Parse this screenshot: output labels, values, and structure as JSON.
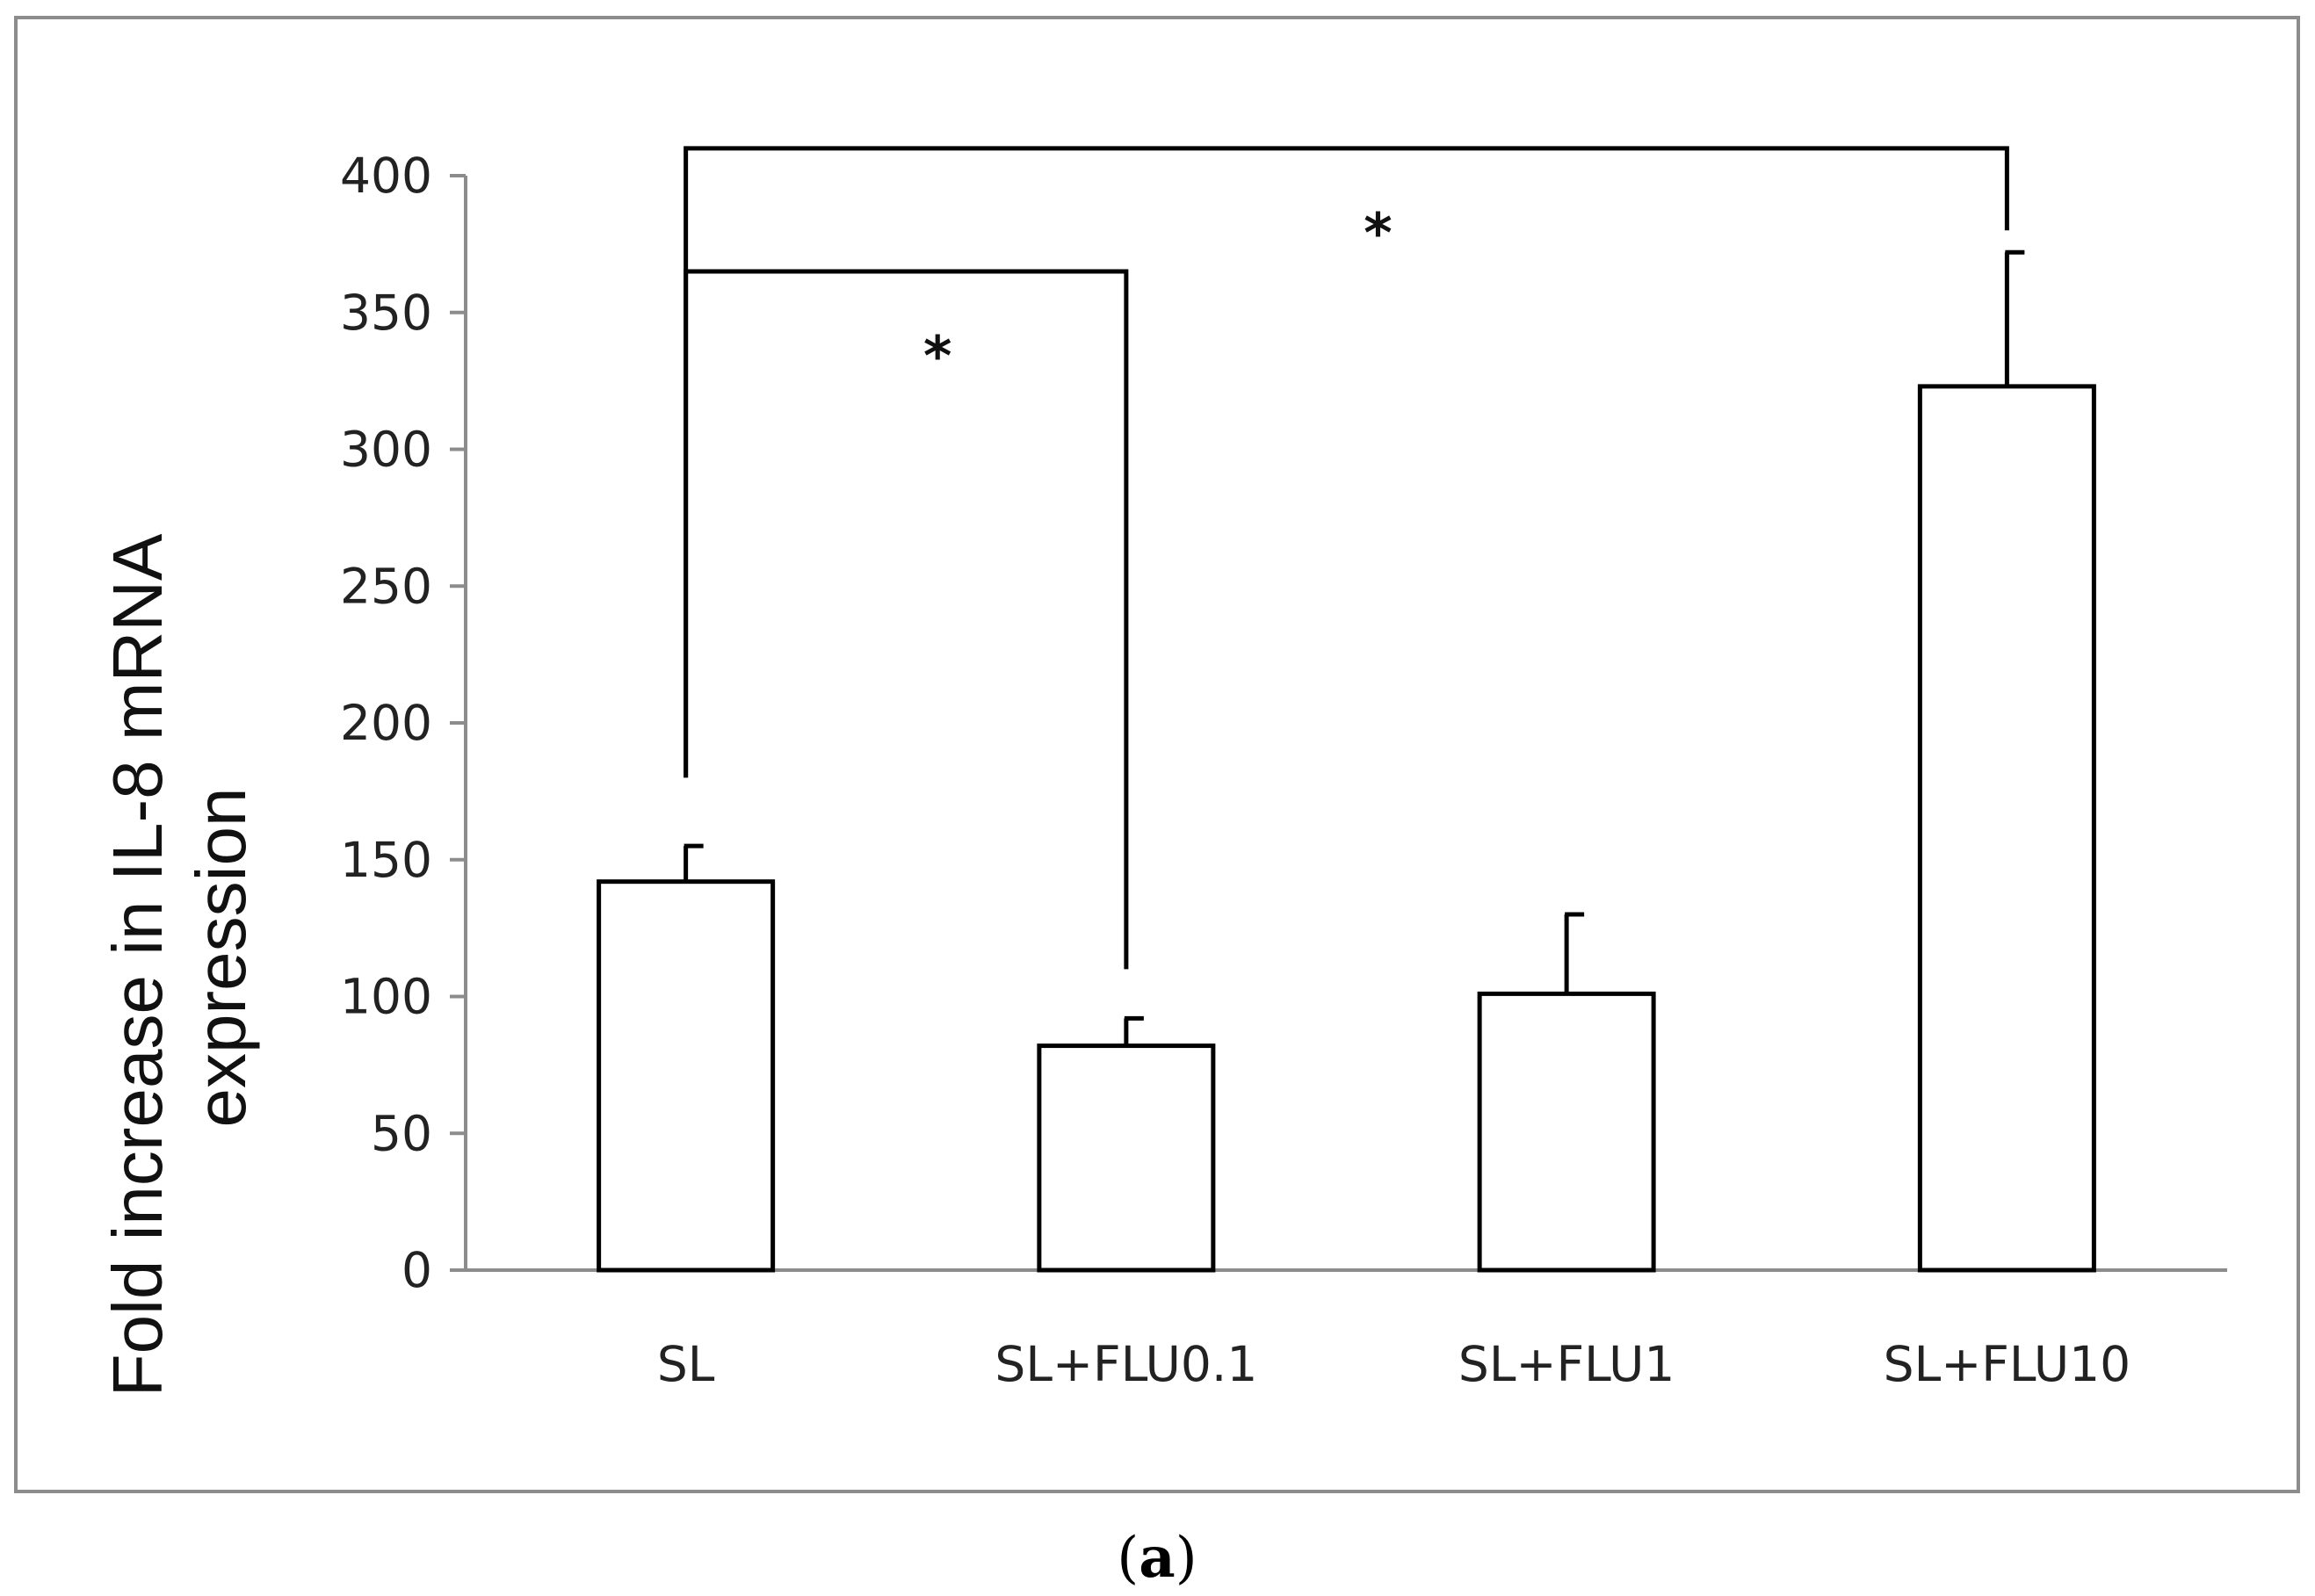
{
  "chart_data": {
    "type": "bar",
    "categories": [
      "SL",
      "SL+FLU0.1",
      "SL+FLU1",
      "SL+FLU10"
    ],
    "values": [
      142,
      82,
      101,
      323
    ],
    "error_upper": [
      155,
      92,
      130,
      372
    ],
    "ylabel_lines": [
      "Fold increase in IL-8 mRNA",
      "expression"
    ],
    "xlabel": "",
    "ylim": [
      0,
      400
    ],
    "yticks": [
      0,
      50,
      100,
      150,
      200,
      250,
      300,
      350,
      400
    ],
    "bar_fill": "#ffffff",
    "bar_stroke": "#000000",
    "axis_color": "#8c8c8c",
    "frame_color": "#8c8c8c",
    "grid": false,
    "legend": "none",
    "significance": [
      {
        "from": "SL",
        "to": "SL+FLU0.1",
        "label": "*",
        "bracket_y": 365,
        "from_drop_to": 180,
        "to_drop_to": 110
      },
      {
        "from": "SL",
        "to": "SL+FLU10",
        "label": "*",
        "bracket_y": 410,
        "from_drop_to": 180,
        "to_drop_to": 380
      }
    ]
  },
  "caption": {
    "open": "(",
    "letter": "a",
    "close": ")"
  }
}
